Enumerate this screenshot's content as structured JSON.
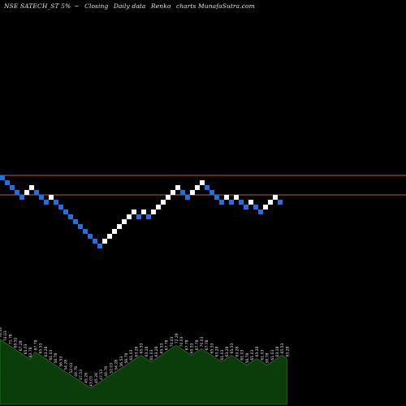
{
  "header": {
    "symbol": "NSE SATECH_ST 5%",
    "arrow": "~",
    "mode": "Closing",
    "period": "Daily data",
    "kind": "Renko",
    "suffix": "charts MunafaSutra.com"
  },
  "colors": {
    "background": "#000000",
    "up_brick": "#ffffff",
    "down_brick": "#1f6fe5",
    "reference_line": "#b8642c",
    "volume_fill": "#0b3d0b",
    "volume_line": "#2f8f2f",
    "label_text": "#e6e6e6"
  },
  "chart_data": {
    "type": "renko",
    "reference_levels": [
      "upper",
      "lower"
    ],
    "bricks": [
      "down",
      "down",
      "down",
      "down",
      "down",
      "up",
      "up",
      "down",
      "down",
      "down",
      "up",
      "down",
      "down",
      "down",
      "down",
      "down",
      "down",
      "down",
      "down",
      "down",
      "down",
      "up",
      "up",
      "up",
      "up",
      "up",
      "up",
      "up",
      "down",
      "up",
      "down",
      "up",
      "up",
      "up",
      "up",
      "up",
      "up",
      "down",
      "down",
      "up",
      "up",
      "up",
      "down",
      "down",
      "down",
      "down",
      "up",
      "down",
      "up",
      "down",
      "down",
      "up",
      "down",
      "down",
      "up",
      "up",
      "up",
      "down"
    ],
    "volume_labels": [
      "76.33",
      "74.03",
      "71.78",
      "69.52",
      "67.28",
      "65.03",
      "62.78",
      "67.78",
      "65.53",
      "63.28",
      "61.03",
      "58.78",
      "56.53",
      "54.28",
      "52.03",
      "49.78",
      "47.53",
      "45.28",
      "43.03",
      "45.28",
      "47.53",
      "49.78",
      "52.03",
      "54.28",
      "56.53",
      "58.78",
      "61.03",
      "63.28",
      "65.53",
      "63.28",
      "61.03",
      "63.28",
      "65.53",
      "67.78",
      "70.03",
      "72.28",
      "70.03",
      "67.78",
      "65.53",
      "67.78",
      "70.03",
      "67.78",
      "65.53",
      "63.28",
      "61.03",
      "63.28",
      "65.53",
      "63.28",
      "61.03",
      "58.78",
      "61.03",
      "63.28",
      "61.03",
      "58.78",
      "61.03",
      "63.28",
      "65.53",
      "63.28"
    ]
  }
}
